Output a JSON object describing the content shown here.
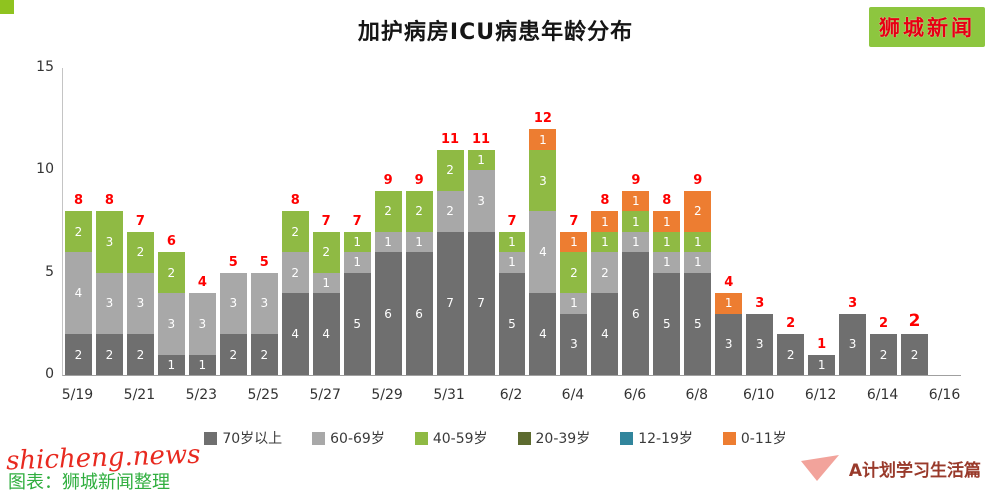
{
  "branding": {
    "logo_text": "狮城新闻",
    "watermark": "shicheng.news",
    "caption": "图表：狮城新闻整理",
    "footer_right": "A计划学习生活篇"
  },
  "chart_data": {
    "type": "bar",
    "stacked": true,
    "title": "加护病房ICU病患年龄分布",
    "xlabel": "",
    "ylabel": "",
    "ylim": [
      0,
      15
    ],
    "yticks": [
      0,
      5,
      10,
      15
    ],
    "grid": false,
    "legend_position": "bottom",
    "tick_every": 2,
    "total_color": "#fe0000",
    "bold_total_index": 27,
    "categories": [
      "5/19",
      "5/20",
      "5/21",
      "5/22",
      "5/23",
      "5/24",
      "5/25",
      "5/26",
      "5/27",
      "5/28",
      "5/29",
      "5/30",
      "5/31",
      "6/1",
      "6/2",
      "6/3",
      "6/4",
      "6/5",
      "6/6",
      "6/7",
      "6/8",
      "6/9",
      "6/10",
      "6/11",
      "6/12",
      "6/13",
      "6/14",
      "6/15",
      "6/16"
    ],
    "series": [
      {
        "name": "70岁以上",
        "color": "#6f6f6f",
        "values": [
          2,
          2,
          2,
          1,
          1,
          2,
          2,
          4,
          4,
          5,
          6,
          6,
          7,
          7,
          5,
          4,
          3,
          4,
          6,
          5,
          5,
          3,
          3,
          2,
          1,
          3,
          2,
          2,
          0
        ]
      },
      {
        "name": "60-69岁",
        "color": "#a8a8a8",
        "values": [
          4,
          3,
          3,
          3,
          3,
          3,
          3,
          2,
          1,
          1,
          1,
          1,
          2,
          3,
          1,
          4,
          1,
          2,
          1,
          1,
          1,
          0,
          0,
          0,
          0,
          0,
          0,
          0,
          0
        ]
      },
      {
        "name": "40-59岁",
        "color": "#8fba44",
        "values": [
          2,
          3,
          2,
          2,
          0,
          0,
          0,
          2,
          2,
          1,
          2,
          2,
          2,
          1,
          1,
          3,
          2,
          1,
          1,
          1,
          1,
          0,
          0,
          0,
          0,
          0,
          0,
          0,
          0
        ]
      },
      {
        "name": "20-39岁",
        "color": "#5d6b2f",
        "values": [
          0,
          0,
          0,
          0,
          0,
          0,
          0,
          0,
          0,
          0,
          0,
          0,
          0,
          0,
          0,
          0,
          0,
          0,
          0,
          0,
          0,
          0,
          0,
          0,
          0,
          0,
          0,
          0,
          0
        ]
      },
      {
        "name": "12-19岁",
        "color": "#31859c",
        "values": [
          0,
          0,
          0,
          0,
          0,
          0,
          0,
          0,
          0,
          0,
          0,
          0,
          0,
          0,
          0,
          0,
          0,
          0,
          0,
          0,
          0,
          0,
          0,
          0,
          0,
          0,
          0,
          0,
          0
        ]
      },
      {
        "name": "0-11岁",
        "color": "#ed7d31",
        "values": [
          0,
          0,
          0,
          0,
          0,
          0,
          0,
          0,
          0,
          0,
          0,
          0,
          0,
          0,
          0,
          1,
          1,
          1,
          1,
          1,
          2,
          1,
          0,
          0,
          0,
          0,
          0,
          0,
          0
        ]
      }
    ],
    "totals": [
      8,
      8,
      7,
      6,
      4,
      5,
      5,
      8,
      7,
      7,
      9,
      9,
      11,
      11,
      7,
      12,
      7,
      8,
      9,
      8,
      9,
      4,
      3,
      2,
      1,
      3,
      2,
      2,
      0
    ]
  }
}
